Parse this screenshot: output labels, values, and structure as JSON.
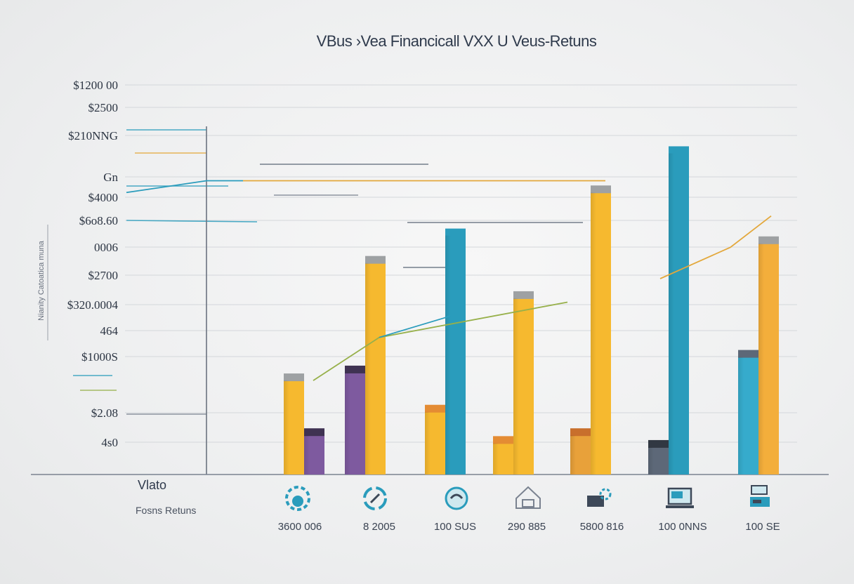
{
  "chart_data": {
    "type": "bar",
    "title": "VBus ›Vea Financicall VXX U Veus-Retuns",
    "ylabel": "Nianity Catoatica muna",
    "corner_label": "Vlato",
    "corner_sublabel": "Fosns Retuns",
    "y_tick_labels": [
      "$1200 00",
      "$2500",
      "$210NNG",
      "Gn",
      "$4000",
      "$6o8.60",
      "0006",
      "$2700",
      "$320.0004",
      "464",
      "$1000S",
      "$2.08",
      "4s0"
    ],
    "categories": [
      "3600 006",
      "8 2005",
      "100 SUS",
      "290 885",
      "5800 816",
      "100 0NNS",
      "100 SE"
    ],
    "icons": [
      "gear-cloud-icon",
      "cycle-arrows-icon",
      "globe-refresh-icon",
      "house-outline-icon",
      "gear-laptop-icon",
      "monitor-icon",
      "server-stack-icon"
    ],
    "ylim": [
      0,
      100
    ],
    "bars": [
      [
        {
          "color": "#f6b92f",
          "top": 100,
          "bottom": 0,
          "cap": "#9ea1a3",
          "peak": 24
        },
        {
          "color": "#7e5a9f",
          "top": 98,
          "bottom": 0,
          "cap": "#3f3252",
          "peak": 10
        }
      ],
      [
        {
          "color": "#7e5a9f",
          "top": 100,
          "bottom": 0,
          "cap": "#3f3252",
          "peak": 26
        },
        {
          "color": "#f6b92f",
          "top": 100,
          "bottom": 0,
          "cap": "#9ea1a3",
          "peak": 54
        }
      ],
      [
        {
          "color": "#f6b92f",
          "top": 100,
          "bottom": 0,
          "cap": "#e48c33",
          "peak": 16
        },
        {
          "color": "#2a9cbc",
          "top": 100,
          "bottom": 0,
          "cap": "#2a9cbc",
          "peak": 61
        }
      ],
      [
        {
          "color": "#f6b92f",
          "top": 100,
          "bottom": 0,
          "cap": "#e48c33",
          "peak": 8
        },
        {
          "color": "#f6b92f",
          "top": 100,
          "bottom": 0,
          "cap": "#9ea1a3",
          "peak": 45
        }
      ],
      [
        {
          "color": "#e8a13a",
          "top": 100,
          "bottom": 0,
          "cap": "#c86f2c",
          "peak": 10
        },
        {
          "color": "#f6b92f",
          "top": 100,
          "bottom": 0,
          "cap": "#9ea1a3",
          "peak": 72
        }
      ],
      [
        {
          "color": "#5d6878",
          "top": 100,
          "bottom": 0,
          "cap": "#313842",
          "peak": 7
        },
        {
          "color": "#2a9cbc",
          "top": 100,
          "bottom": 0,
          "cap": "#2a9cbc",
          "peak": 82
        }
      ],
      [
        {
          "color": "#36abcc",
          "top": 100,
          "bottom": 0,
          "cap": "#5d6878",
          "peak": 30
        },
        {
          "color": "#f3ae3b",
          "top": 100,
          "bottom": 0,
          "cap": "#9ea1a3",
          "peak": 59
        }
      ]
    ],
    "trend_series": [
      {
        "color": "#2a9cbc",
        "values": [
          72,
          75,
          75
        ]
      },
      {
        "color": "#e3a83c",
        "values": [
          75,
          75,
          75
        ]
      },
      {
        "color": "#97b04a",
        "values": [
          24,
          35,
          44
        ]
      },
      {
        "color": "#2a9cbc",
        "values": [
          35,
          40,
          41
        ]
      },
      {
        "color": "#e3a83c",
        "values": [
          50,
          58,
          66
        ]
      }
    ],
    "grid": true
  }
}
